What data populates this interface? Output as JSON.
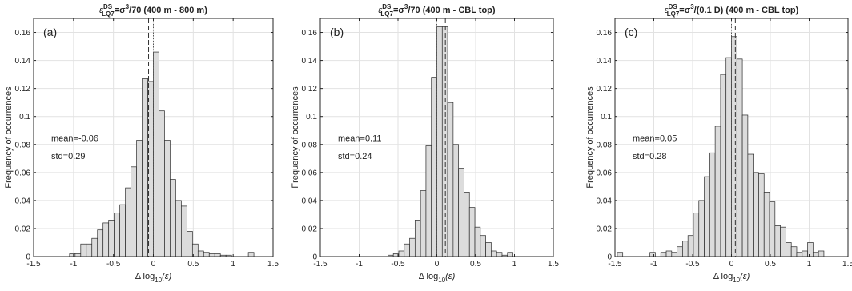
{
  "chart_data": [
    {
      "type": "bar",
      "title": {
        "eps": "ε",
        "sup": "DS",
        "sub": "LQ7",
        "eq": "=σ",
        "pow": "3",
        "rest": "/70 (400 m - 800 m)"
      },
      "panel_label": "(a)",
      "xlabel": {
        "pre": "Δ log",
        "sub": "10",
        "post": "(ε)"
      },
      "ylabel": "Frequency of occurrences",
      "xlim": [
        -1.5,
        1.5
      ],
      "ylim": [
        0,
        0.17
      ],
      "xticks": [
        -1.5,
        -1,
        -0.5,
        0,
        0.5,
        1,
        1.5
      ],
      "xtick_labels": [
        "-1.5",
        "-1",
        "-0.5",
        "0",
        "0.5",
        "1",
        "1.5"
      ],
      "yticks": [
        0,
        0.02,
        0.04,
        0.06,
        0.08,
        0.1,
        0.12,
        0.14,
        0.16
      ],
      "ytick_labels": [
        "0",
        "0.02",
        "0.04",
        "0.06",
        "0.08",
        "0.1",
        "0.12",
        "0.14",
        "0.16"
      ],
      "grid": true,
      "bin_width": 0.07,
      "bin_starts": [
        -1.05,
        -0.98,
        -0.91,
        -0.84,
        -0.77,
        -0.7,
        -0.63,
        -0.56,
        -0.49,
        -0.42,
        -0.35,
        -0.28,
        -0.21,
        -0.14,
        -0.07,
        0.0,
        0.07,
        0.14,
        0.21,
        0.28,
        0.35,
        0.42,
        0.49,
        0.56,
        0.63,
        0.7,
        0.77,
        0.84,
        0.91,
        0.98,
        1.05,
        1.12,
        1.19
      ],
      "values": [
        0.002,
        0.002,
        0.009,
        0.009,
        0.013,
        0.019,
        0.024,
        0.026,
        0.031,
        0.037,
        0.049,
        0.064,
        0.083,
        0.127,
        0.125,
        0.146,
        0.104,
        0.083,
        0.055,
        0.04,
        0.036,
        0.018,
        0.009,
        0.004,
        0.003,
        0.002,
        0.002,
        0.001,
        0.001,
        0.0,
        0.0,
        0.0,
        0.003
      ],
      "mean_text": "mean=-0.06",
      "std_text": "std=0.29",
      "mean_line": -0.06,
      "zero_line": 0.0
    },
    {
      "type": "bar",
      "title": {
        "eps": "ε",
        "sup": "DS",
        "sub": "LQ7",
        "eq": "=σ",
        "pow": "3",
        "rest": "/70 (400 m - CBL top)"
      },
      "panel_label": "(b)",
      "xlabel": {
        "pre": "Δ log",
        "sub": "10",
        "post": "(ε)"
      },
      "ylabel": "Frequency of occurrences",
      "xlim": [
        -1.5,
        1.5
      ],
      "ylim": [
        0,
        0.17
      ],
      "xticks": [
        -1.5,
        -1,
        -0.5,
        0,
        0.5,
        1,
        1.5
      ],
      "xtick_labels": [
        "-1.5",
        "-1",
        "-0.5",
        "0",
        "0.5",
        "1",
        "1.5"
      ],
      "yticks": [
        0,
        0.02,
        0.04,
        0.06,
        0.08,
        0.1,
        0.12,
        0.14,
        0.16
      ],
      "ytick_labels": [
        "0",
        "0.02",
        "0.04",
        "0.06",
        "0.08",
        "0.1",
        "0.12",
        "0.14",
        "0.16"
      ],
      "grid": true,
      "bin_width": 0.07,
      "bin_starts": [
        -0.63,
        -0.56,
        -0.49,
        -0.42,
        -0.35,
        -0.28,
        -0.21,
        -0.14,
        -0.07,
        0.0,
        0.07,
        0.14,
        0.21,
        0.28,
        0.35,
        0.42,
        0.49,
        0.56,
        0.63,
        0.7,
        0.77,
        0.84,
        0.91
      ],
      "values": [
        0.001,
        0.002,
        0.004,
        0.009,
        0.013,
        0.026,
        0.047,
        0.079,
        0.128,
        0.164,
        0.164,
        0.11,
        0.08,
        0.063,
        0.046,
        0.035,
        0.021,
        0.015,
        0.01,
        0.004,
        0.003,
        0.001,
        0.003
      ],
      "mean_text": "mean=0.11",
      "std_text": "std=0.24",
      "mean_line": 0.11,
      "zero_line": 0.0
    },
    {
      "type": "bar",
      "title": {
        "eps": "ε",
        "sup": "DS",
        "sub": "LQ7",
        "eq": "=σ",
        "pow": "3",
        "rest": "/(0.1 D) (400 m - CBL top)"
      },
      "panel_label": "(c)",
      "xlabel": {
        "pre": "Δ log",
        "sub": "10",
        "post": "(ε)"
      },
      "ylabel": "Frequency of occurrences",
      "xlim": [
        -1.5,
        1.5
      ],
      "ylim": [
        0,
        0.17
      ],
      "xticks": [
        -1.5,
        -1,
        -0.5,
        0,
        0.5,
        1,
        1.5
      ],
      "xtick_labels": [
        "-1.5",
        "-1",
        "-0.5",
        "0",
        "0.5",
        "1",
        "1.5"
      ],
      "yticks": [
        0,
        0.02,
        0.04,
        0.06,
        0.08,
        0.1,
        0.12,
        0.14,
        0.16
      ],
      "ytick_labels": [
        "0",
        "0.02",
        "0.04",
        "0.06",
        "0.08",
        "0.1",
        "0.12",
        "0.14",
        "0.16"
      ],
      "grid": true,
      "bin_width": 0.07,
      "bin_starts": [
        -1.47,
        -1.4,
        -1.33,
        -1.26,
        -1.19,
        -1.12,
        -1.05,
        -0.98,
        -0.91,
        -0.84,
        -0.77,
        -0.7,
        -0.63,
        -0.56,
        -0.49,
        -0.42,
        -0.35,
        -0.28,
        -0.21,
        -0.14,
        -0.07,
        0.0,
        0.07,
        0.14,
        0.21,
        0.28,
        0.35,
        0.42,
        0.49,
        0.56,
        0.63,
        0.7,
        0.77,
        0.84,
        0.91,
        0.98,
        1.05,
        1.12
      ],
      "values": [
        0.003,
        0.0,
        0.0,
        0.0,
        0.0,
        0.0,
        0.003,
        0.0,
        0.003,
        0.004,
        0.003,
        0.007,
        0.011,
        0.015,
        0.031,
        0.04,
        0.057,
        0.074,
        0.093,
        0.13,
        0.142,
        0.157,
        0.141,
        0.101,
        0.073,
        0.06,
        0.059,
        0.046,
        0.039,
        0.022,
        0.021,
        0.01,
        0.007,
        0.003,
        0.004,
        0.01,
        0.003,
        0.004
      ],
      "mean_text": "mean=0.05",
      "std_text": "std=0.28",
      "mean_line": 0.05,
      "zero_line": 0.0
    }
  ],
  "colors": {
    "bar_fill": "#dcdcdc",
    "bar_edge": "#2a2a2a",
    "grid": "#e2e2e2",
    "axis": "#262626"
  }
}
